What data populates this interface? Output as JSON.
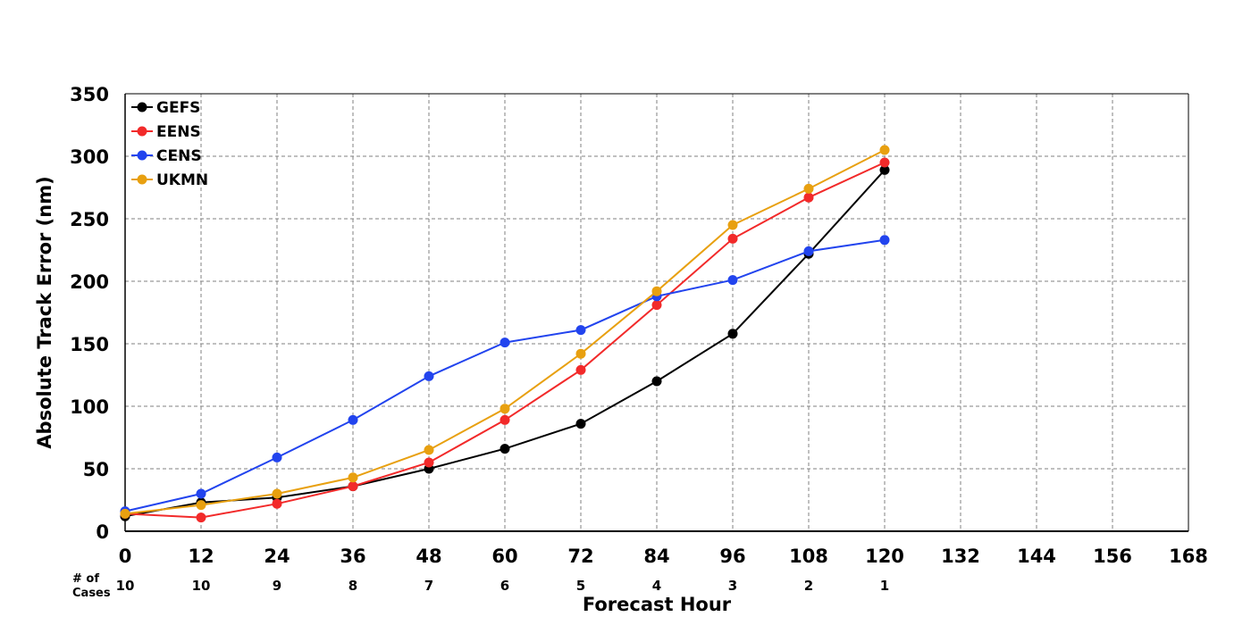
{
  "chart_data": {
    "type": "line",
    "title": "",
    "xlabel": "Forecast Hour",
    "ylabel": "Absolute Track Error (nm)",
    "xlim": [
      0,
      168
    ],
    "ylim": [
      0,
      350
    ],
    "x_ticks": [
      0,
      12,
      24,
      36,
      48,
      60,
      72,
      84,
      96,
      108,
      120,
      132,
      144,
      156,
      168
    ],
    "y_ticks": [
      0,
      50,
      100,
      150,
      200,
      250,
      300,
      350
    ],
    "grid": true,
    "legend_position": "top-left",
    "x": [
      0,
      12,
      24,
      36,
      48,
      60,
      72,
      84,
      96,
      108,
      120
    ],
    "series": [
      {
        "name": "GEFS",
        "color": "#000000",
        "values": [
          12,
          23,
          27,
          36,
          50,
          66,
          86,
          120,
          158,
          222,
          289
        ]
      },
      {
        "name": "EENS",
        "color": "#f22a2a",
        "values": [
          14,
          11,
          22,
          36,
          55,
          89,
          129,
          181,
          234,
          267,
          295
        ]
      },
      {
        "name": "CENS",
        "color": "#2244ee",
        "values": [
          16,
          30,
          59,
          89,
          124,
          151,
          161,
          188,
          201,
          224,
          233
        ]
      },
      {
        "name": "UKMN",
        "color": "#e8a010",
        "values": [
          14,
          21,
          30,
          43,
          65,
          98,
          142,
          192,
          245,
          274,
          305
        ]
      }
    ],
    "cases": {
      "label_line1": "# of",
      "label_line2": "Cases",
      "values": [
        10,
        10,
        9,
        8,
        7,
        6,
        5,
        4,
        3,
        2,
        1
      ]
    }
  }
}
